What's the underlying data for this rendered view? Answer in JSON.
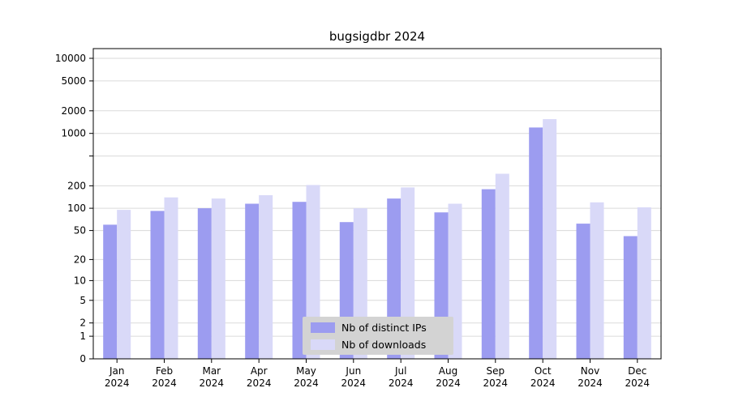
{
  "chart_data": {
    "type": "bar",
    "title": "bugsigdbr 2024",
    "categories": [
      "Jan",
      "Feb",
      "Mar",
      "Apr",
      "May",
      "Jun",
      "Jul",
      "Aug",
      "Sep",
      "Oct",
      "Nov",
      "Dec"
    ],
    "x_axis": {
      "year": "2024"
    },
    "series": [
      {
        "key": "distinct-ips",
        "name": "Nb of distinct IPs",
        "color": "#9c9cf0",
        "values": [
          60,
          92,
          100,
          115,
          122,
          65,
          135,
          88,
          180,
          1200,
          62,
          42
        ]
      },
      {
        "key": "downloads",
        "name": "Nb of downloads",
        "color": "#d9d9f8",
        "values": [
          95,
          140,
          135,
          150,
          205,
          100,
          190,
          115,
          290,
          1550,
          120,
          103
        ]
      }
    ],
    "y_axis": {
      "scale": "log1p",
      "min": 0,
      "max": 10000,
      "ticks": [
        {
          "value": 10000,
          "label": "10000"
        },
        {
          "value": 5000,
          "label": "5000"
        },
        {
          "value": 2000,
          "label": "2000"
        },
        {
          "value": 1000,
          "label": "1000"
        },
        {
          "value": 500,
          "label": ""
        },
        {
          "value": 200,
          "label": "200"
        },
        {
          "value": 100,
          "label": "100"
        },
        {
          "value": 50,
          "label": "50"
        },
        {
          "value": 20,
          "label": "20"
        },
        {
          "value": 10,
          "label": "10"
        },
        {
          "value": 5,
          "label": "5"
        },
        {
          "value": 2,
          "label": "2"
        },
        {
          "value": 1,
          "label": "1"
        },
        {
          "value": 0,
          "label": "0"
        }
      ]
    },
    "legend": {
      "position": "bottom-center",
      "background": "#d3d3d3"
    },
    "grid": true,
    "style": {
      "grid_color": "#dadada",
      "axis_color": "#000000",
      "background": "#ffffff"
    }
  }
}
